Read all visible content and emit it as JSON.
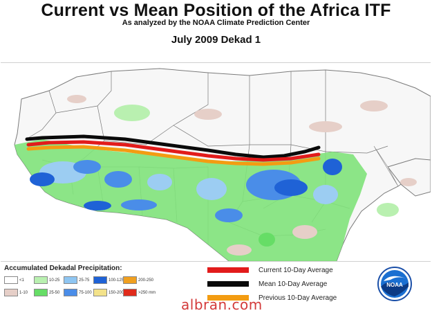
{
  "header": {
    "title": "Current vs Mean Position of the Africa ITF",
    "subtitle": "As analyzed by the NOAA Climate Prediction Center",
    "period": "July 2009 Dekad 1"
  },
  "legend": {
    "precip_title": "Accumulated Dekadal Precipitation:",
    "precip_classes": [
      {
        "label": "<1",
        "color": "#ffffff"
      },
      {
        "label": "10-25",
        "color": "#b9f0b0"
      },
      {
        "label": "25-75",
        "color": "#8fc6f2"
      },
      {
        "label": "100-125",
        "color": "#1f62d6"
      },
      {
        "label": "200-250",
        "color": "#f0a020"
      },
      {
        "label": "",
        "color": ""
      },
      {
        "label": "1-10",
        "color": "#e6cfc8"
      },
      {
        "label": "25-50",
        "color": "#66dd66"
      },
      {
        "label": "75-100",
        "color": "#4a8de8"
      },
      {
        "label": "150-200",
        "color": "#f3e28a"
      },
      {
        "label": ">250 mm",
        "color": "#e02b1b"
      },
      {
        "label": "",
        "color": ""
      }
    ],
    "lines": [
      {
        "label": "Current 10-Day Average",
        "color": "#e21b1b"
      },
      {
        "label": "Mean 10-Day Average",
        "color": "#0a0a0a"
      },
      {
        "label": "Previous 10-Day Average",
        "color": "#f39c12"
      }
    ]
  },
  "logo": {
    "text": "NOAA",
    "icon": "noaa-logo"
  },
  "watermark": "albran.com"
}
